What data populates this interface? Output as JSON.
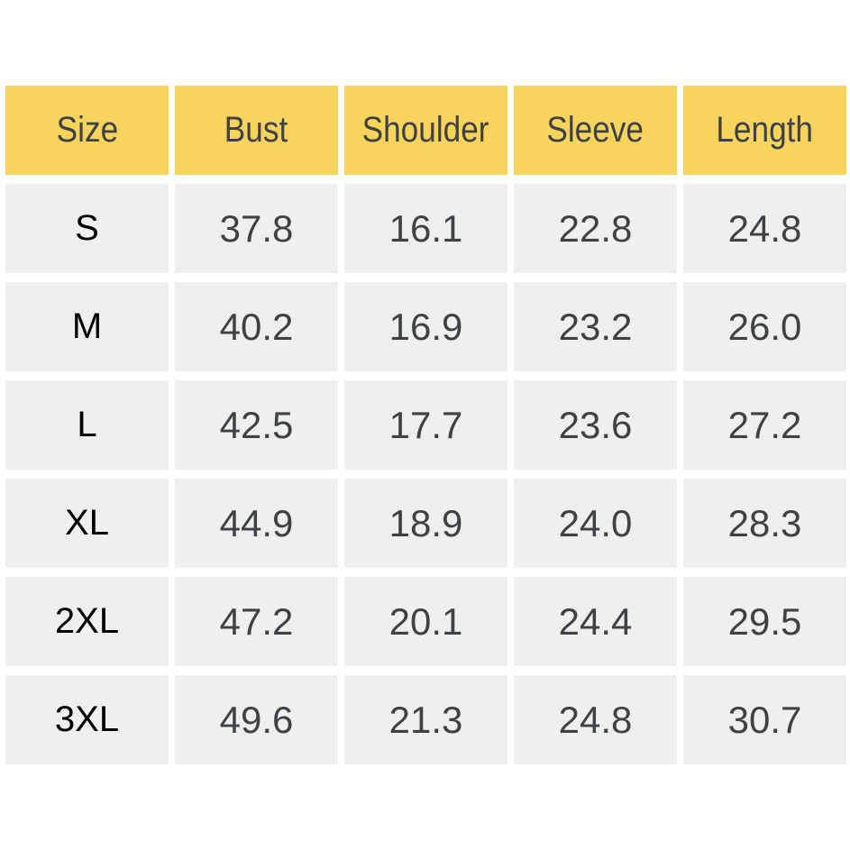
{
  "chart_data": {
    "type": "table",
    "columns": [
      "Size",
      "Bust",
      "Shoulder",
      "Sleeve",
      "Length"
    ],
    "rows": [
      [
        "S",
        "37.8",
        "16.1",
        "22.8",
        "24.8"
      ],
      [
        "M",
        "40.2",
        "16.9",
        "23.2",
        "26.0"
      ],
      [
        "L",
        "42.5",
        "17.7",
        "23.6",
        "27.2"
      ],
      [
        "XL",
        "44.9",
        "18.9",
        "24.0",
        "28.3"
      ],
      [
        "2XL",
        "47.2",
        "20.1",
        "24.4",
        "29.5"
      ],
      [
        "3XL",
        "49.6",
        "21.3",
        "24.8",
        "30.7"
      ]
    ]
  },
  "colors": {
    "header_bg": "#f8d45c",
    "row_bg": "#efefef",
    "header_text": "#3f4245",
    "value_text": "#3f4245",
    "size_label_text": "#000000",
    "page_bg": "#ffffff"
  }
}
